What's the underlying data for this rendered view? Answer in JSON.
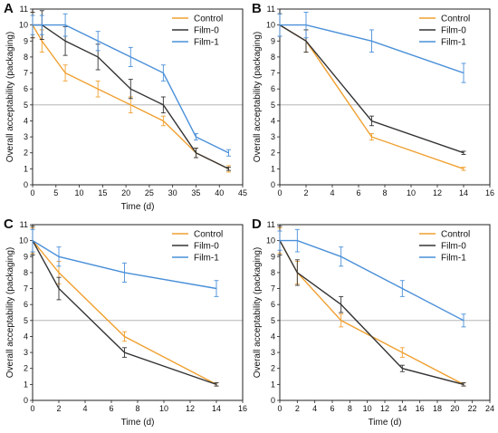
{
  "colors": {
    "control": "#f0a030",
    "film0": "#333333",
    "film1": "#4a90d9",
    "refline": "#aaaaaa",
    "axis": "#222222"
  },
  "chart_data": [
    {
      "panel": "A",
      "type": "line",
      "xlabel": "Time (d)",
      "ylabel": "Overall acceptability (packaging)",
      "xlim": [
        0,
        45
      ],
      "ylim": [
        0,
        11
      ],
      "xticks": [
        0,
        5,
        10,
        15,
        20,
        25,
        30,
        35,
        40,
        45
      ],
      "yticks": [
        0,
        1,
        2,
        3,
        4,
        5,
        6,
        7,
        8,
        9,
        10,
        11
      ],
      "refline": 5,
      "legend_position": "top-right",
      "x": [
        0,
        2,
        7,
        14,
        21,
        28,
        35,
        42
      ],
      "series": [
        {
          "name": "Control",
          "color": "#f0a030",
          "values": [
            10,
            9,
            7,
            6,
            5,
            4,
            2,
            1
          ],
          "errors": [
            0.8,
            0.7,
            0.5,
            0.5,
            0.5,
            0.3,
            0.3,
            0.2
          ]
        },
        {
          "name": "Film-0",
          "color": "#333333",
          "values": [
            10,
            10,
            9,
            8,
            6,
            5,
            2,
            1
          ],
          "errors": [
            0.8,
            0.9,
            0.9,
            0.8,
            0.6,
            0.5,
            0.3,
            0.1
          ]
        },
        {
          "name": "Film-1",
          "color": "#4a90d9",
          "values": [
            10,
            10,
            10,
            9,
            8,
            7,
            3,
            2
          ],
          "errors": [
            0.6,
            0.6,
            0.7,
            0.6,
            0.6,
            0.5,
            0.2,
            0.2
          ]
        }
      ]
    },
    {
      "panel": "B",
      "type": "line",
      "xlabel": "",
      "ylabel": "Overall acceptability (packaging)",
      "xlim": [
        0,
        16
      ],
      "ylim": [
        0,
        11
      ],
      "xticks": [
        0,
        2,
        4,
        6,
        8,
        10,
        12,
        14,
        16
      ],
      "yticks": [
        0,
        1,
        2,
        3,
        4,
        5,
        6,
        7,
        8,
        9,
        10,
        11
      ],
      "refline": 5,
      "legend_position": "top-right",
      "x": [
        0,
        2,
        7,
        14
      ],
      "series": [
        {
          "name": "Control",
          "color": "#f0a030",
          "values": [
            10,
            9,
            3,
            1
          ],
          "errors": [
            0.7,
            0.7,
            0.2,
            0.1
          ]
        },
        {
          "name": "Film-0",
          "color": "#333333",
          "values": [
            10,
            9,
            4,
            2
          ],
          "errors": [
            0.7,
            0.7,
            0.3,
            0.1
          ]
        },
        {
          "name": "Film-1",
          "color": "#4a90d9",
          "values": [
            10,
            10,
            9,
            7
          ],
          "errors": [
            0.7,
            0.8,
            0.7,
            0.6
          ]
        }
      ]
    },
    {
      "panel": "C",
      "type": "line",
      "xlabel": "Time (d)",
      "ylabel": "Overall acceptability (packaging)",
      "xlim": [
        0,
        16
      ],
      "ylim": [
        0,
        11
      ],
      "xticks": [
        0,
        2,
        4,
        6,
        8,
        10,
        12,
        14,
        16
      ],
      "yticks": [
        0,
        1,
        2,
        3,
        4,
        5,
        6,
        7,
        8,
        9,
        10,
        11
      ],
      "refline": 5,
      "legend_position": "top-right",
      "x": [
        0,
        2,
        7,
        14
      ],
      "series": [
        {
          "name": "Control",
          "color": "#f0a030",
          "values": [
            10,
            8,
            4,
            1
          ],
          "errors": [
            0.8,
            0.7,
            0.3,
            0.1
          ]
        },
        {
          "name": "Film-0",
          "color": "#333333",
          "values": [
            10,
            7,
            3,
            1
          ],
          "errors": [
            0.9,
            0.7,
            0.3,
            0.1
          ]
        },
        {
          "name": "Film-1",
          "color": "#4a90d9",
          "values": [
            10,
            9,
            8,
            7
          ],
          "errors": [
            0.7,
            0.6,
            0.6,
            0.5
          ]
        }
      ]
    },
    {
      "panel": "D",
      "type": "line",
      "xlabel": "Time (d)",
      "ylabel": "Overall acceptability (packaging)",
      "xlim": [
        0,
        24
      ],
      "ylim": [
        0,
        11
      ],
      "xticks": [
        0,
        2,
        4,
        6,
        8,
        10,
        12,
        14,
        16,
        18,
        20,
        22,
        24
      ],
      "yticks": [
        0,
        1,
        2,
        3,
        4,
        5,
        6,
        7,
        8,
        9,
        10,
        11
      ],
      "refline": 5,
      "legend_position": "top-right",
      "x": [
        0,
        2,
        7,
        14,
        21
      ],
      "series": [
        {
          "name": "Control",
          "color": "#f0a030",
          "values": [
            10,
            8,
            5,
            3,
            1
          ],
          "errors": [
            0.8,
            0.7,
            0.4,
            0.3,
            0.1
          ]
        },
        {
          "name": "Film-0",
          "color": "#333333",
          "values": [
            10,
            8,
            6,
            2,
            1
          ],
          "errors": [
            0.9,
            0.8,
            0.5,
            0.2,
            0.1
          ]
        },
        {
          "name": "Film-1",
          "color": "#4a90d9",
          "values": [
            10,
            10,
            9,
            7,
            5
          ],
          "errors": [
            0.6,
            0.7,
            0.6,
            0.5,
            0.4
          ]
        }
      ]
    }
  ]
}
